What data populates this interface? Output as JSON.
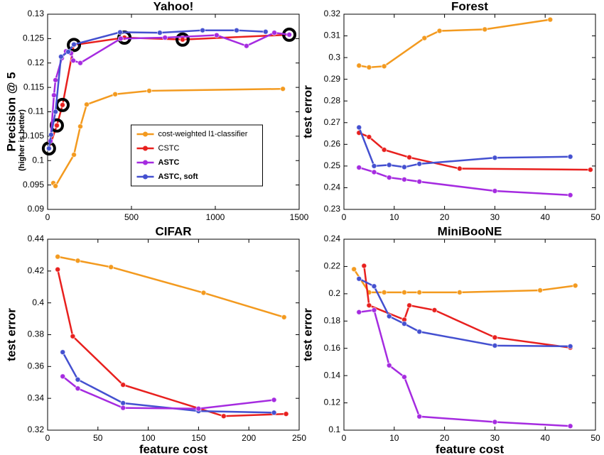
{
  "chart_data": [
    {
      "type": "line",
      "title": "Yahoo!",
      "ylabel": "Precision @ 5",
      "ylabel_note": "(higher is better)",
      "ylabel_note_color": "#d0302a",
      "xlim": [
        0,
        1500
      ],
      "xticks": [
        0,
        500,
        1000,
        1500
      ],
      "ylim": [
        0.09,
        0.13
      ],
      "yticks": [
        0.09,
        0.095,
        0.1,
        0.105,
        0.11,
        0.115,
        0.12,
        0.125,
        0.13
      ],
      "legend": "lower center",
      "series": [
        {
          "name": "cost-weighted l1-classifier",
          "color": "#f39a1f",
          "x": [
            34,
            47,
            157,
            195,
            233,
            403,
            606,
            1403
          ],
          "values": [
            0.0954,
            0.0948,
            0.1012,
            0.107,
            0.1115,
            0.1136,
            0.1143,
            0.1147
          ]
        },
        {
          "name": "CSTC",
          "color": "#e8201e",
          "marker_ring": "#000000",
          "x": [
            8,
            55,
            89,
            157,
            458,
            805,
            1441
          ],
          "values": [
            0.1025,
            0.1072,
            0.1114,
            0.1237,
            0.1252,
            0.1248,
            0.1258
          ]
        },
        {
          "name": "ASTC",
          "bold": true,
          "color": "#a52be0",
          "x": [
            17,
            38,
            47,
            85,
            110,
            140,
            153,
            195,
            436,
            700,
            1008,
            1186,
            1352,
            1441
          ],
          "values": [
            0.104,
            0.1134,
            0.1165,
            0.121,
            0.1224,
            0.122,
            0.1205,
            0.12,
            0.125,
            0.1252,
            0.1257,
            0.1235,
            0.1262,
            0.1258
          ]
        },
        {
          "name": "ASTC, soft",
          "bold": true,
          "color": "#4450d0",
          "x": [
            8,
            21,
            47,
            80,
            123,
            157,
            432,
            669,
            924,
            1127,
            1300
          ],
          "values": [
            0.1025,
            0.1053,
            0.11,
            0.1213,
            0.1223,
            0.1238,
            0.1263,
            0.1262,
            0.1267,
            0.1267,
            0.1264
          ]
        }
      ]
    },
    {
      "type": "line",
      "title": "Forest",
      "ylabel": "test error",
      "xlim": [
        0,
        50
      ],
      "xticks": [
        0,
        10,
        20,
        30,
        40,
        50
      ],
      "ylim": [
        0.23,
        0.32
      ],
      "yticks": [
        0.23,
        0.24,
        0.25,
        0.26,
        0.27,
        0.28,
        0.29,
        0.3,
        0.31,
        0.32
      ],
      "series": [
        {
          "color": "#f39a1f",
          "x": [
            3,
            5,
            8,
            16,
            19,
            28,
            41
          ],
          "values": [
            0.2963,
            0.2955,
            0.296,
            0.309,
            0.3123,
            0.313,
            0.3175
          ]
        },
        {
          "color": "#e8201e",
          "x": [
            3,
            5,
            8,
            13,
            23,
            49
          ],
          "values": [
            0.2653,
            0.2634,
            0.2575,
            0.254,
            0.2488,
            0.2483
          ]
        },
        {
          "color": "#4450d0",
          "x": [
            3,
            6,
            9,
            12,
            15,
            30,
            45
          ],
          "values": [
            0.2678,
            0.25,
            0.2505,
            0.2495,
            0.251,
            0.2538,
            0.2543
          ]
        },
        {
          "color": "#a52be0",
          "x": [
            3,
            6,
            9,
            12,
            15,
            30,
            45
          ],
          "values": [
            0.2493,
            0.2472,
            0.2447,
            0.2438,
            0.2428,
            0.2385,
            0.2366
          ]
        }
      ]
    },
    {
      "type": "line",
      "title": "CIFAR",
      "xlabel": "feature cost",
      "ylabel": "test error",
      "xlim": [
        0,
        250
      ],
      "xticks": [
        0,
        50,
        100,
        150,
        200,
        250
      ],
      "ylim": [
        0.32,
        0.44
      ],
      "yticks": [
        0.32,
        0.34,
        0.36,
        0.38,
        0.4,
        0.42,
        0.44
      ],
      "series": [
        {
          "color": "#f39a1f",
          "x": [
            10,
            30,
            63,
            155,
            235
          ],
          "values": [
            0.429,
            0.4265,
            0.4225,
            0.4063,
            0.391
          ]
        },
        {
          "color": "#e8201e",
          "x": [
            10,
            25,
            75,
            175,
            237
          ],
          "values": [
            0.421,
            0.379,
            0.3485,
            0.3288,
            0.3302
          ]
        },
        {
          "color": "#4450d0",
          "x": [
            15,
            30,
            75,
            150,
            225
          ],
          "values": [
            0.369,
            0.3518,
            0.337,
            0.332,
            0.331
          ]
        },
        {
          "color": "#a52be0",
          "x": [
            15,
            30,
            75,
            150,
            225
          ],
          "values": [
            0.3538,
            0.3462,
            0.334,
            0.3335,
            0.339
          ]
        }
      ]
    },
    {
      "type": "line",
      "title": "MiniBooNE",
      "xlabel": "feature cost",
      "ylabel": "test error",
      "xlim": [
        0,
        50
      ],
      "xticks": [
        0,
        10,
        20,
        30,
        40,
        50
      ],
      "ylim": [
        0.1,
        0.24
      ],
      "yticks": [
        0.1,
        0.12,
        0.14,
        0.16,
        0.18,
        0.2,
        0.22,
        0.24
      ],
      "series": [
        {
          "color": "#f39a1f",
          "x": [
            2,
            5,
            8,
            12,
            15,
            23,
            39,
            46
          ],
          "values": [
            0.218,
            0.201,
            0.201,
            0.201,
            0.201,
            0.201,
            0.2025,
            0.206
          ]
        },
        {
          "color": "#e8201e",
          "x": [
            4,
            5,
            12,
            13,
            18,
            30,
            45
          ],
          "values": [
            0.2205,
            0.1915,
            0.181,
            0.1915,
            0.188,
            0.168,
            0.1605
          ]
        },
        {
          "color": "#4450d0",
          "x": [
            3,
            6,
            9,
            12,
            15,
            30,
            45
          ],
          "values": [
            0.211,
            0.2055,
            0.1835,
            0.178,
            0.1722,
            0.162,
            0.1615
          ]
        },
        {
          "color": "#a52be0",
          "x": [
            3,
            6,
            9,
            12,
            15,
            30,
            45
          ],
          "values": [
            0.1865,
            0.188,
            0.1475,
            0.139,
            0.11,
            0.106,
            0.103
          ]
        }
      ]
    }
  ]
}
